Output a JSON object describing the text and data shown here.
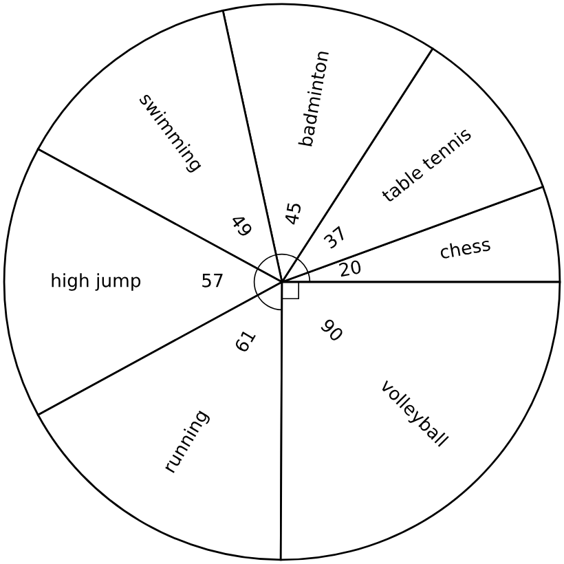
{
  "chart_data": {
    "type": "pie",
    "categories": [
      "chess",
      "table tennis",
      "badminton",
      "swimming",
      "high jump",
      "running",
      "volleyball"
    ],
    "values": [
      20,
      37,
      45,
      49,
      57,
      61,
      90
    ],
    "colors": [
      "#ffffff",
      "#ffffff",
      "#ffffff",
      "#ffffff",
      "#ffffff",
      "#ffffff",
      "#ffffff"
    ],
    "data_labels": true
  }
}
